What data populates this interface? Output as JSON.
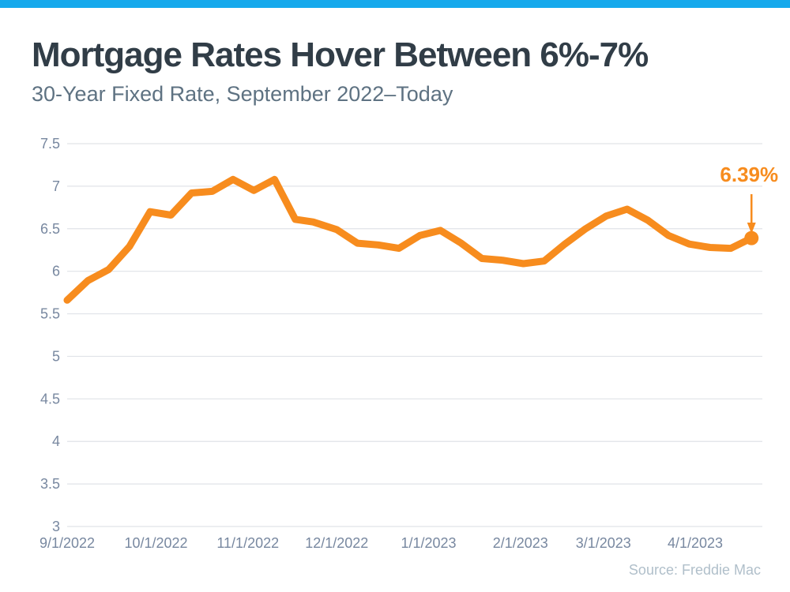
{
  "page": {
    "title": "Mortgage Rates Hover Between 6%-7%",
    "subtitle": "30-Year Fixed Rate, September 2022–Today",
    "source": "Source: Freddie Mac"
  },
  "annotation": {
    "label": "6.39%"
  },
  "colors": {
    "top_bar": "#16A9EC",
    "line": "#F78C1E",
    "title": "#313D47",
    "subtitle": "#5E7282",
    "tick_labels": "#7888A0",
    "gridlines": "#E0E3E8",
    "source": "#B0BFCA",
    "background": "#FFFFFF"
  },
  "chart_data": {
    "type": "line",
    "title": "Mortgage Rates Hover Between 6%-7%",
    "subtitle": "30-Year Fixed Rate, September 2022–Today",
    "series": [
      {
        "name": "30-Year Fixed Rate",
        "x": [
          "9/1/2022",
          "9/8/2022",
          "9/15/2022",
          "9/22/2022",
          "9/29/2022",
          "10/6/2022",
          "10/13/2022",
          "10/20/2022",
          "10/27/2022",
          "11/3/2022",
          "11/10/2022",
          "11/17/2022",
          "11/23/2022",
          "12/1/2022",
          "12/8/2022",
          "12/15/2022",
          "12/22/2022",
          "12/29/2022",
          "1/5/2023",
          "1/12/2023",
          "1/19/2023",
          "1/26/2023",
          "2/2/2023",
          "2/9/2023",
          "2/16/2023",
          "2/23/2023",
          "3/2/2023",
          "3/9/2023",
          "3/16/2023",
          "3/23/2023",
          "3/30/2023",
          "4/6/2023",
          "4/13/2023",
          "4/20/2023"
        ],
        "values": [
          5.66,
          5.89,
          6.02,
          6.29,
          6.7,
          6.66,
          6.92,
          6.94,
          7.08,
          6.95,
          7.08,
          6.61,
          6.58,
          6.49,
          6.33,
          6.31,
          6.27,
          6.42,
          6.48,
          6.33,
          6.15,
          6.13,
          6.09,
          6.12,
          6.32,
          6.5,
          6.65,
          6.73,
          6.6,
          6.42,
          6.32,
          6.28,
          6.27,
          6.39
        ]
      }
    ],
    "x_tick_labels": [
      "9/1/2022",
      "10/1/2022",
      "11/1/2022",
      "12/1/2022",
      "1/1/2023",
      "2/1/2023",
      "3/1/2023",
      "4/1/2023"
    ],
    "y_ticks": [
      3,
      3.5,
      4,
      4.5,
      5,
      5.5,
      6,
      6.5,
      7,
      7.5
    ],
    "ylim": [
      3,
      7.5
    ],
    "grid": "horizontal-only",
    "legend": "none",
    "annotation": {
      "text": "6.39%",
      "x": "4/20/2023",
      "y": 6.39
    },
    "source": "Source: Freddie Mac"
  }
}
